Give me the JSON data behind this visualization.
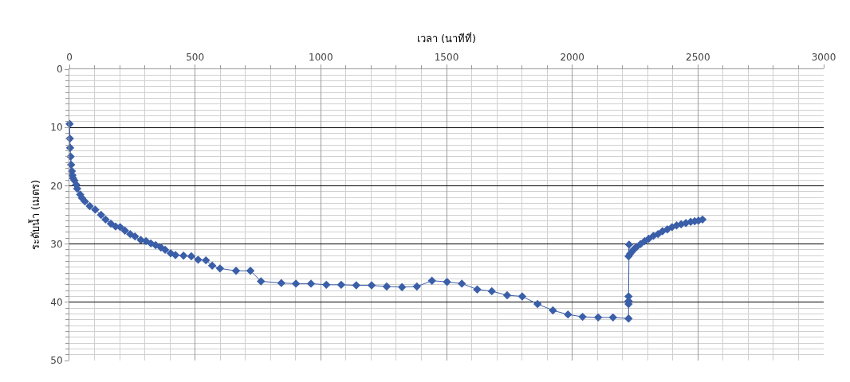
{
  "chart_data": {
    "type": "line",
    "xlabel": "เวลา (นาทีที่)",
    "ylabel": "ระดับน้ำ (เมตร)",
    "series": [
      {
        "color": "#3a5ea8",
        "x": [
          1,
          2,
          3,
          5,
          7,
          10,
          12,
          15,
          20,
          27,
          31,
          43,
          50,
          62,
          81,
          103,
          126,
          144,
          165,
          184,
          202,
          221,
          242,
          261,
          284,
          305,
          324,
          343,
          364,
          381,
          403,
          422,
          454,
          485,
          512,
          543,
          568,
          599,
          663,
          720,
          762,
          843,
          901,
          961,
          1022,
          1081,
          1141,
          1202,
          1262,
          1323,
          1382,
          1442,
          1502,
          1561,
          1622,
          1680,
          1741,
          1801,
          1862,
          1923,
          1983,
          2041,
          2103,
          2162,
          2224,
          2224,
          2224,
          2224,
          2226,
          2224,
          2230,
          2238,
          2245,
          2256,
          2272,
          2288,
          2304,
          2323,
          2341,
          2359,
          2378,
          2397,
          2415,
          2433,
          2452,
          2471,
          2487,
          2502,
          2518
        ],
        "values": [
          9.4,
          11.9,
          13.5,
          15.0,
          16.4,
          17.5,
          18.2,
          18.7,
          19.1,
          19.8,
          20.5,
          21.5,
          22.1,
          22.7,
          23.5,
          24.1,
          25.0,
          25.8,
          26.5,
          27.0,
          27.1,
          27.7,
          28.3,
          28.7,
          29.3,
          29.5,
          29.9,
          30.2,
          30.6,
          31.0,
          31.6,
          31.9,
          32.0,
          32.1,
          32.7,
          32.8,
          33.7,
          34.2,
          34.6,
          34.6,
          36.4,
          36.7,
          36.8,
          36.8,
          37.0,
          37.0,
          37.1,
          37.1,
          37.3,
          37.4,
          37.3,
          36.3,
          36.5,
          36.8,
          37.8,
          38.1,
          38.8,
          39.0,
          40.3,
          41.4,
          42.1,
          42.5,
          42.6,
          42.6,
          42.8,
          40.3,
          39.8,
          39.0,
          30.1,
          32.1,
          31.7,
          31.3,
          30.9,
          30.5,
          30.0,
          29.5,
          29.1,
          28.6,
          28.3,
          27.8,
          27.5,
          27.1,
          26.8,
          26.6,
          26.4,
          26.2,
          26.1,
          26.0,
          25.8
        ]
      }
    ],
    "xlim": [
      0,
      3000
    ],
    "xticks": [
      0,
      500,
      1000,
      1500,
      2000,
      2500,
      3000
    ],
    "ylim": [
      50,
      0
    ],
    "yticks": [
      0,
      10,
      20,
      30,
      40,
      50
    ],
    "grid": true,
    "marker": "diamond",
    "line_style": "solid"
  }
}
